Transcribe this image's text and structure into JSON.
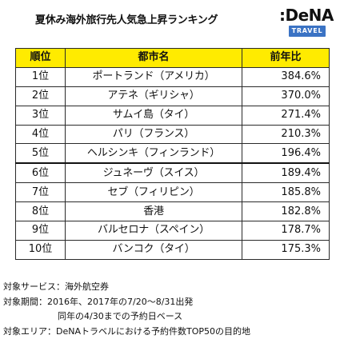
{
  "title": "夏休み海外旅行先人気急上昇ランキング",
  "brand": {
    "name": ":DeNA",
    "tag": "TRAVEL"
  },
  "table": {
    "headers": {
      "rank": "順位",
      "city": "都市名",
      "growth": "前年比"
    },
    "rows": [
      {
        "rank": "1位",
        "city": "ポートランド（アメリカ）",
        "growth": "384.6%"
      },
      {
        "rank": "2位",
        "city": "アテネ（ギリシャ）",
        "growth": "370.0%"
      },
      {
        "rank": "3位",
        "city": "サムイ島（タイ）",
        "growth": "271.4%"
      },
      {
        "rank": "4位",
        "city": "パリ（フランス）",
        "growth": "210.3%"
      },
      {
        "rank": "5位",
        "city": "ヘルシンキ（フィンランド）",
        "growth": "196.4%"
      },
      {
        "rank": "6位",
        "city": "ジュネーヴ（スイス）",
        "growth": "189.4%"
      },
      {
        "rank": "7位",
        "city": "セブ（フィリピン）",
        "growth": "185.8%"
      },
      {
        "rank": "8位",
        "city": "香港",
        "growth": "182.8%"
      },
      {
        "rank": "9位",
        "city": "バルセロナ（スペイン）",
        "growth": "178.7%"
      },
      {
        "rank": "10位",
        "city": "バンコク（タイ）",
        "growth": "175.3%"
      }
    ]
  },
  "notes": {
    "service": "対象サービス：海外航空券",
    "period": "対象期間：2016年、2017年の7/20～8/31出発",
    "period_cont": "同年の4/30までの予約日ベース",
    "area": "対象エリア：DeNAトラベルにおける予約件数TOP50の目的地"
  },
  "colors": {
    "header_background": "#ffeb00",
    "brand_tag_background": "#3b73c4"
  }
}
